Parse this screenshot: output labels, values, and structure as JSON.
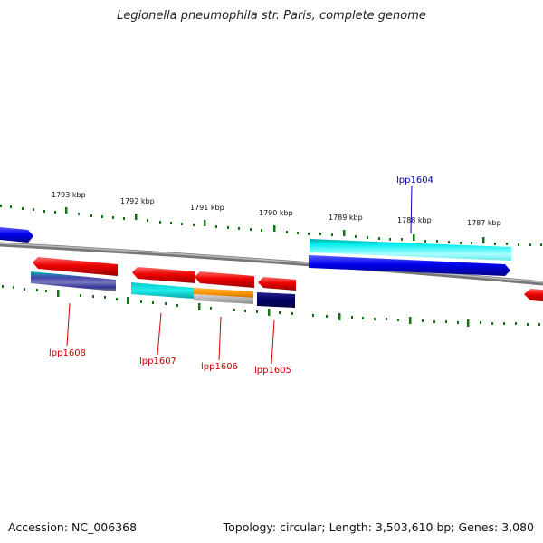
{
  "title": "Legionella pneumophila str. Paris, complete genome",
  "footer": {
    "accession": "Accession: NC_006368",
    "summary": "Topology: circular; Length: 3,503,610 bp; Genes: 3,080"
  },
  "ticks": [
    "1793 kbp",
    "1792 kbp",
    "1791 kbp",
    "1790 kbp",
    "1789 kbp",
    "1788 kbp",
    "1787 kbp"
  ],
  "gene_labels": {
    "lpp1604": "lpp1604",
    "lpp1605": "lpp1605",
    "lpp1606": "lpp1606",
    "lpp1607": "lpp1607",
    "lpp1608": "lpp1608"
  },
  "colors": {
    "forward_cds": "#0000ee",
    "reverse_cds": "#ee0000",
    "forward_label": "#0000aa",
    "reverse_label": "#cc0000",
    "cyan": "#00e5e5",
    "orange": "#ff9900",
    "navy": "#000066",
    "backbone": "#888888",
    "tick": "#117711"
  }
}
